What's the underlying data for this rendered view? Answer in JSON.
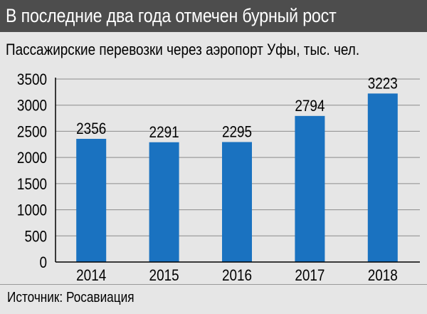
{
  "header": {
    "title": "В последние два года отмечен бурный рост"
  },
  "footer": {
    "source": "Источник: Росавиация"
  },
  "colors": {
    "header_bg": "#4d4d4d",
    "background": "#e6e6e6",
    "bar": "#1a72c0",
    "gridline": "#8c8c8c"
  },
  "chart_data": {
    "type": "bar",
    "title": "Пассажирские перевозки через аэропорт Уфы, тыс. чел.",
    "categories": [
      "2014",
      "2015",
      "2016",
      "2017",
      "2018"
    ],
    "values": [
      2356,
      2291,
      2295,
      2794,
      3223
    ],
    "xlabel": "",
    "ylabel": "",
    "ylim": [
      0,
      3500
    ],
    "yticks": [
      0,
      500,
      1000,
      1500,
      2000,
      2500,
      3000,
      3500
    ],
    "grid": true,
    "data_labels": true
  }
}
